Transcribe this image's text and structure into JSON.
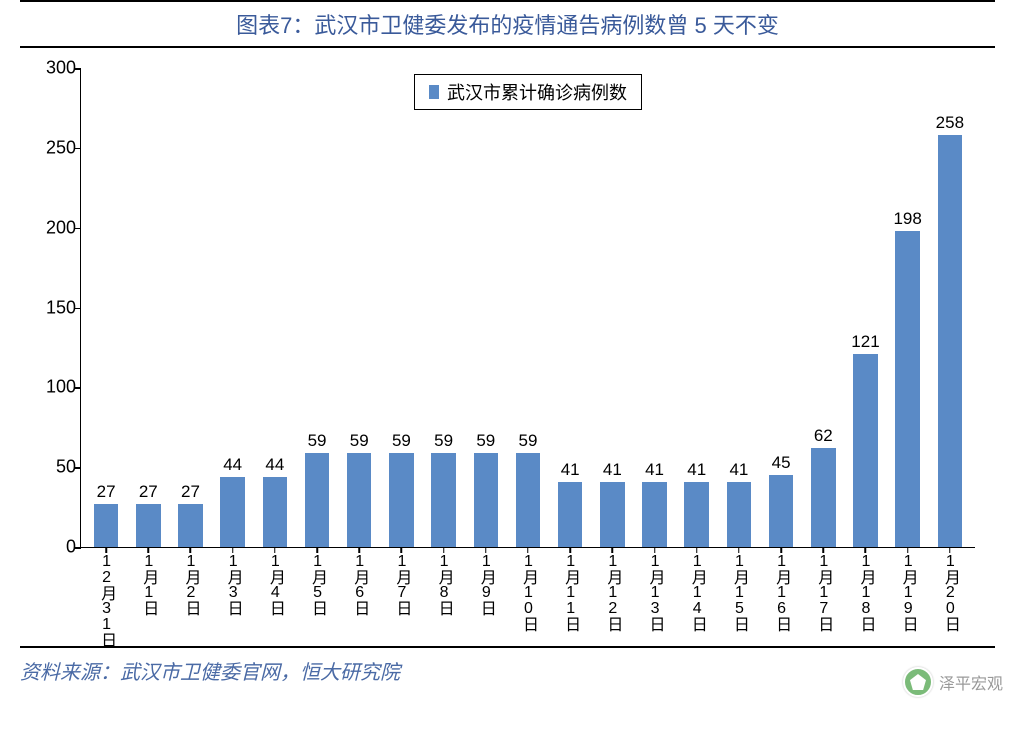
{
  "title": "图表7：武汉市卫健委发布的疫情通告病例数曾 5 天不变",
  "source": "资料来源：武汉市卫健委官网，恒大研究院",
  "watermark": "泽平宏观",
  "chart": {
    "type": "bar",
    "legend_label": "武汉市累计确诊病例数",
    "bar_color": "#5a8ac6",
    "title_color": "#3a5a9a",
    "axis_color": "#000000",
    "background_color": "#ffffff",
    "ylim": [
      0,
      300
    ],
    "ytick_step": 50,
    "yticks": [
      0,
      50,
      100,
      150,
      200,
      250,
      300
    ],
    "label_fontsize": 18,
    "categories": [
      "12月31日",
      "1月1日",
      "1月2日",
      "1月3日",
      "1月4日",
      "1月5日",
      "1月6日",
      "1月7日",
      "1月8日",
      "1月9日",
      "1月10日",
      "1月11日",
      "1月12日",
      "1月13日",
      "1月14日",
      "1月15日",
      "1月16日",
      "1月17日",
      "1月18日",
      "1月19日",
      "1月20日"
    ],
    "values": [
      27,
      27,
      27,
      44,
      44,
      59,
      59,
      59,
      59,
      59,
      59,
      41,
      41,
      41,
      41,
      41,
      45,
      62,
      121,
      198,
      258
    ]
  }
}
